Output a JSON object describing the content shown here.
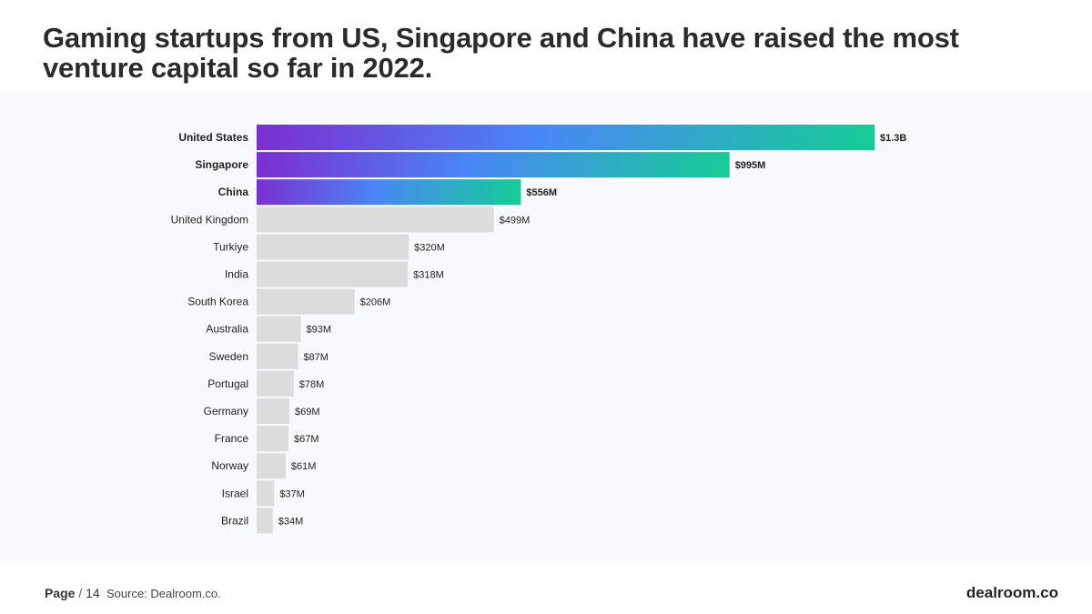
{
  "title": "Gaming startups from US, Singapore and China have raised the most venture capital so far in 2022.",
  "footer": {
    "page_label": "Page",
    "page_sep": "/",
    "page_number": "14",
    "source": "Source: Dealroom.co.",
    "brand": "dealroom.co"
  },
  "colors": {
    "gradient_start": "#7b2fd1",
    "gradient_mid": "#4a86f7",
    "gradient_end": "#16cc96",
    "gray_bar": "#dcdcdc",
    "panel_bg": "#f8f9fd"
  },
  "chart_data": {
    "type": "bar",
    "orientation": "horizontal",
    "title": "Gaming startups from US, Singapore and China have raised the most venture capital so far in 2022.",
    "xlabel": "",
    "ylabel": "",
    "unit": "$M",
    "grid": false,
    "legend": "none",
    "categories": [
      "United States",
      "Singapore",
      "China",
      "United Kingdom",
      "Turkiye",
      "India",
      "South Korea",
      "Australia",
      "Sweden",
      "Portugal",
      "Germany",
      "France",
      "Norway",
      "Israel",
      "Brazil"
    ],
    "values": [
      1300,
      995,
      556,
      499,
      320,
      318,
      206,
      93,
      87,
      78,
      69,
      67,
      61,
      37,
      34
    ],
    "value_labels": [
      "$1.3B",
      "$995M",
      "$556M",
      "$499M",
      "$320M",
      "$318M",
      "$206M",
      "$93M",
      "$87M",
      "$78M",
      "$69M",
      "$67M",
      "$61M",
      "$37M",
      "$34M"
    ],
    "highlighted": [
      true,
      true,
      true,
      false,
      false,
      false,
      false,
      false,
      false,
      false,
      false,
      false,
      false,
      false,
      false
    ],
    "xlim": [
      0,
      1300
    ]
  }
}
